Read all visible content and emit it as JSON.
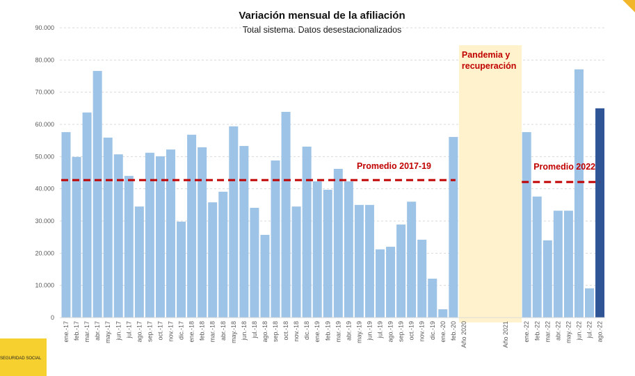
{
  "chart_data": {
    "type": "bar",
    "title": "Variación mensual de la afiliación",
    "subtitle": "Total sistema. Datos desestacionalizados",
    "ylim": [
      0,
      90000
    ],
    "yticks": [
      "0",
      "10.000",
      "20.000",
      "30.000",
      "40.000",
      "50.000",
      "60.000",
      "70.000",
      "80.000",
      "90.000"
    ],
    "grid": true,
    "categories": [
      "ene.-17",
      "feb.-17",
      "mar.-17",
      "abr.-17",
      "may.-17",
      "jun.-17",
      "jul.-17",
      "ago.-17",
      "sep.-17",
      "oct.-17",
      "nov.-17",
      "dic.-17",
      "ene.-18",
      "feb.-18",
      "mar.-18",
      "abr.-18",
      "may.-18",
      "jun.-18",
      "jul.-18",
      "ago.-18",
      "sep.-18",
      "oct.-18",
      "nov.-18",
      "dic.-18",
      "ene.-19",
      "feb.-19",
      "mar.-19",
      "abr.-19",
      "may.-19",
      "jun.-19",
      "jul.-19",
      "ago.-19",
      "sep.-19",
      "oct.-19",
      "nov.-19",
      "dic.-19",
      "ene.-20",
      "feb.-20",
      "Año 2020",
      "",
      "",
      "",
      "Año 2021",
      "",
      "ene.-22",
      "feb.-22",
      "mar.-22",
      "abr.-22",
      "may.-22",
      "jun.-22",
      "jul.-22",
      "ago.-22"
    ],
    "values": [
      57600,
      49900,
      63700,
      76600,
      55900,
      50700,
      44000,
      34500,
      51200,
      50100,
      52200,
      29800,
      56800,
      52900,
      35800,
      39100,
      59400,
      53300,
      34100,
      25700,
      48800,
      63900,
      34500,
      53100,
      42300,
      39700,
      46200,
      42300,
      35000,
      35000,
      21200,
      22000,
      28900,
      36000,
      24200,
      12100,
      2600,
      56100,
      null,
      null,
      null,
      null,
      null,
      null,
      57600,
      37600,
      24000,
      33200,
      33200,
      77100,
      9100,
      65000
    ],
    "highlight_index": 51,
    "colors": {
      "bar": "#9DC3E6",
      "highlight": "#2F5597",
      "average": "#C00000",
      "band": "#FFF2CC"
    },
    "averages": [
      {
        "label": "Promedio 2017-19",
        "value": 42700,
        "from": "ene.-17",
        "to": "feb.-20"
      },
      {
        "label": "Promedio 2022",
        "value": 42100,
        "from": "ene.-22",
        "to": "ago.-22"
      }
    ],
    "band": {
      "label_line1": "Pandemia y",
      "label_line2": "recuperación",
      "from": "Año 2020",
      "to": "Año 2021"
    }
  },
  "footer": {
    "logo_text": "SEGURIDAD SOCIAL"
  }
}
